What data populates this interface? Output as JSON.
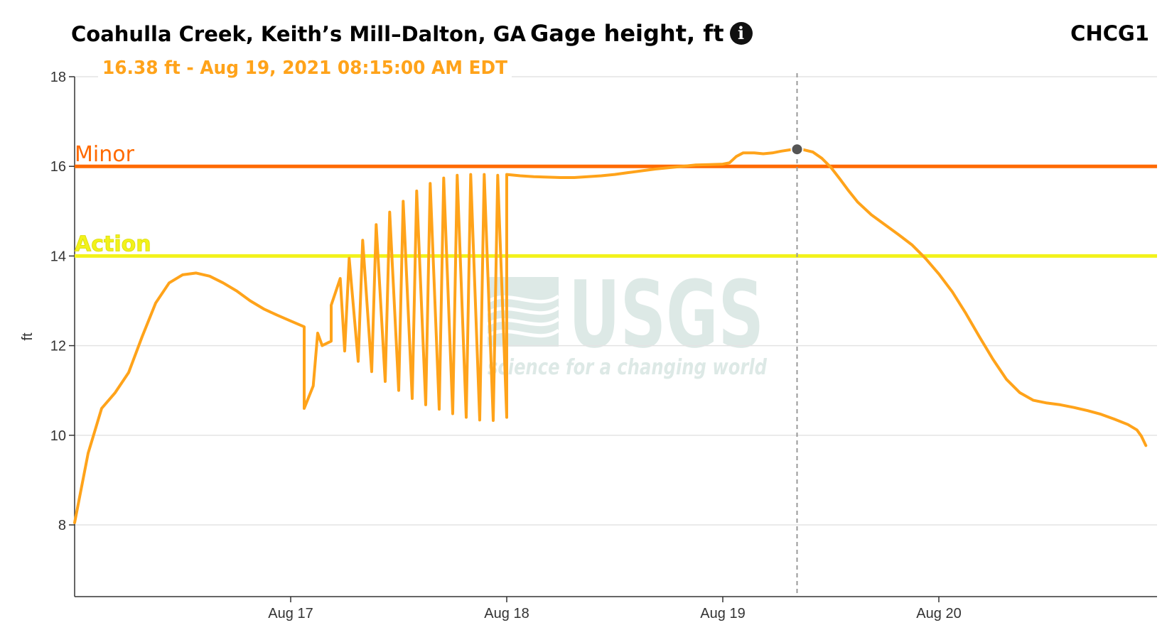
{
  "header": {
    "site_name": "Coahulla Creek, Keith’s Mill–Dalton, GA",
    "parameter": "Gage height, ft",
    "station_id": "CHCG1",
    "info_icon": "info-icon"
  },
  "tooltip": {
    "text": "16.38 ft - Aug 19, 2021 08:15:00 AM EDT",
    "color": "#ffa31a"
  },
  "watermark": {
    "logo": "USGS",
    "tagline": "science for a changing world",
    "color": "#dde9e6"
  },
  "chart_data": {
    "type": "line",
    "ylabel": "ft",
    "ylim": [
      6.4,
      18
    ],
    "yticks": [
      8,
      10,
      12,
      14,
      16,
      18
    ],
    "x_unit": "days",
    "xlim": [
      "Aug 16 00:00",
      "Aug 20 23:00"
    ],
    "xticks": [
      {
        "label": "Aug 17",
        "day": 1
      },
      {
        "label": "Aug 18",
        "day": 2
      },
      {
        "label": "Aug 19",
        "day": 3
      },
      {
        "label": "Aug 20",
        "day": 4
      }
    ],
    "grid": true,
    "thresholds": [
      {
        "name": "Minor",
        "value": 16,
        "color": "#ff6a00"
      },
      {
        "name": "Action",
        "value": 14,
        "color": "#f2f21a"
      }
    ],
    "hover": {
      "x": "Aug 19 08:15",
      "y": 16.38
    },
    "series": [
      {
        "color": "#ffa31a",
        "points": [
          [
            "Aug 16 00:00",
            8.05
          ],
          [
            "Aug 16 01:30",
            9.6
          ],
          [
            "Aug 16 03:00",
            10.6
          ],
          [
            "Aug 16 04:30",
            10.95
          ],
          [
            "Aug 16 06:00",
            11.4
          ],
          [
            "Aug 16 07:30",
            12.2
          ],
          [
            "Aug 16 09:00",
            12.95
          ],
          [
            "Aug 16 10:30",
            13.4
          ],
          [
            "Aug 16 12:00",
            13.58
          ],
          [
            "Aug 16 13:30",
            13.62
          ],
          [
            "Aug 16 15:00",
            13.55
          ],
          [
            "Aug 16 16:30",
            13.4
          ],
          [
            "Aug 16 18:00",
            13.22
          ],
          [
            "Aug 16 19:30",
            13.0
          ],
          [
            "Aug 16 21:00",
            12.82
          ],
          [
            "Aug 16 22:30",
            12.68
          ],
          [
            "Aug 17 00:00",
            12.55
          ],
          [
            "Aug 17 01:30",
            12.42
          ],
          [
            "Aug 17 03:00",
            12.28
          ],
          [
            "Aug 17 04:30",
            12.1
          ],
          [
            "Aug 17 06:00",
            11.88
          ],
          [
            "Aug 17 07:30",
            11.65
          ],
          [
            "Aug 17 09:00",
            11.42
          ],
          [
            "Aug 17 10:30",
            11.2
          ],
          [
            "Aug 17 12:00",
            11.0
          ],
          [
            "Aug 17 13:30",
            10.82
          ],
          [
            "Aug 17 15:00",
            10.68
          ],
          [
            "Aug 17 16:30",
            10.58
          ],
          [
            "Aug 17 18:00",
            10.48
          ],
          [
            "Aug 17 19:30",
            10.4
          ],
          [
            "Aug 17 21:00",
            10.34
          ],
          [
            "Aug 17 22:30",
            10.33
          ],
          [
            "Aug 18 00:00",
            10.4
          ],
          [
            "Aug 17 01:30",
            10.6
          ],
          [
            "Aug 17 02:30",
            11.1
          ],
          [
            "Aug 17 03:30",
            12.0
          ],
          [
            "Aug 17 04:30",
            12.9
          ],
          [
            "Aug 17 05:30",
            13.5
          ],
          [
            "Aug 17 06:30",
            13.95
          ],
          [
            "Aug 17 08:00",
            14.35
          ],
          [
            "Aug 17 09:30",
            14.7
          ],
          [
            "Aug 17 11:00",
            14.98
          ],
          [
            "Aug 17 12:30",
            15.22
          ],
          [
            "Aug 17 14:00",
            15.45
          ],
          [
            "Aug 17 15:30",
            15.62
          ],
          [
            "Aug 17 17:00",
            15.74
          ],
          [
            "Aug 17 18:30",
            15.8
          ],
          [
            "Aug 17 20:00",
            15.82
          ],
          [
            "Aug 17 21:30",
            15.82
          ],
          [
            "Aug 17 23:00",
            15.8
          ],
          [
            "Aug 18 00:00",
            15.82
          ],
          [
            "Aug 18 01:30",
            15.79
          ],
          [
            "Aug 18 03:00",
            15.77
          ],
          [
            "Aug 18 04:30",
            15.76
          ],
          [
            "Aug 18 06:00",
            15.75
          ],
          [
            "Aug 18 07:30",
            15.75
          ],
          [
            "Aug 18 09:00",
            15.77
          ],
          [
            "Aug 18 10:30",
            15.79
          ],
          [
            "Aug 18 12:00",
            15.82
          ],
          [
            "Aug 18 13:30",
            15.86
          ],
          [
            "Aug 18 15:00",
            15.9
          ],
          [
            "Aug 18 16:30",
            15.94
          ],
          [
            "Aug 18 18:00",
            15.97
          ],
          [
            "Aug 18 19:30",
            16.0
          ],
          [
            "Aug 18 21:00",
            16.03
          ],
          [
            "Aug 18 22:30",
            16.04
          ],
          [
            "Aug 19 00:00",
            16.05
          ],
          [
            "Aug 19 00:45",
            16.08
          ],
          [
            "Aug 19 01:30",
            16.22
          ],
          [
            "Aug 19 02:15",
            16.3
          ],
          [
            "Aug 19 03:30",
            16.3
          ],
          [
            "Aug 19 04:30",
            16.28
          ],
          [
            "Aug 19 05:30",
            16.3
          ],
          [
            "Aug 19 06:30",
            16.34
          ],
          [
            "Aug 19 07:30",
            16.37
          ],
          [
            "Aug 19 08:15",
            16.38
          ],
          [
            "Aug 19 09:00",
            16.37
          ],
          [
            "Aug 19 10:00",
            16.32
          ],
          [
            "Aug 19 11:00",
            16.18
          ],
          [
            "Aug 19 12:00",
            15.98
          ],
          [
            "Aug 19 13:00",
            15.72
          ],
          [
            "Aug 19 14:00",
            15.45
          ],
          [
            "Aug 19 15:00",
            15.2
          ],
          [
            "Aug 19 16:30",
            14.92
          ],
          [
            "Aug 19 18:00",
            14.7
          ],
          [
            "Aug 19 19:30",
            14.48
          ],
          [
            "Aug 19 21:00",
            14.25
          ],
          [
            "Aug 19 22:30",
            13.95
          ],
          [
            "Aug 20 00:00",
            13.6
          ],
          [
            "Aug 20 01:30",
            13.2
          ],
          [
            "Aug 20 03:00",
            12.72
          ],
          [
            "Aug 20 04:30",
            12.2
          ],
          [
            "Aug 20 06:00",
            11.7
          ],
          [
            "Aug 20 07:30",
            11.25
          ],
          [
            "Aug 20 09:00",
            10.95
          ],
          [
            "Aug 20 10:30",
            10.78
          ],
          [
            "Aug 20 12:00",
            10.72
          ],
          [
            "Aug 20 13:30",
            10.68
          ],
          [
            "Aug 20 15:00",
            10.62
          ],
          [
            "Aug 20 16:30",
            10.55
          ],
          [
            "Aug 20 18:00",
            10.47
          ],
          [
            "Aug 20 19:30",
            10.36
          ],
          [
            "Aug 20 21:00",
            10.24
          ],
          [
            "Aug 20 22:00",
            10.12
          ],
          [
            "Aug 20 22:30",
            9.98
          ],
          [
            "Aug 20 23:00",
            9.77
          ]
        ]
      }
    ]
  }
}
